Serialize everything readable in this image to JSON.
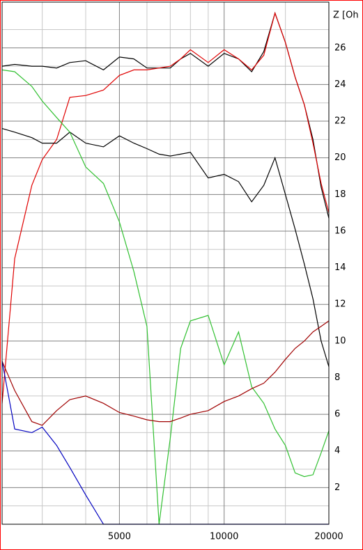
{
  "chart_data": {
    "type": "line",
    "y_axis_label": "Z [Oh",
    "log_x": true,
    "grid": true,
    "xlim": [
      2300,
      20000
    ],
    "xticks": [
      5000,
      10000,
      20000
    ],
    "x_minor_grid": [
      3000,
      4000,
      6000,
      7000,
      8000,
      9000,
      15000
    ],
    "ylim": [
      0,
      28.5
    ],
    "yticks": [
      2,
      4,
      6,
      8,
      10,
      12,
      14,
      16,
      18,
      20,
      22,
      24,
      26
    ],
    "y_minor_grid": [
      1,
      3,
      5,
      7,
      9,
      11,
      13,
      15,
      17,
      19,
      21,
      23,
      25,
      27
    ],
    "x": [
      2300,
      2500,
      2800,
      3000,
      3300,
      3600,
      4000,
      4500,
      5000,
      5500,
      6000,
      6500,
      7000,
      7500,
      8000,
      9000,
      10000,
      11000,
      12000,
      13000,
      14000,
      15000,
      16000,
      17000,
      18000,
      19000,
      20000
    ],
    "series": [
      {
        "color": "#000000",
        "values": [
          25.0,
          25.1,
          25.0,
          25.0,
          24.9,
          25.2,
          25.3,
          24.8,
          25.5,
          25.4,
          24.9,
          24.9,
          24.9,
          25.4,
          25.7,
          25.0,
          25.7,
          25.4,
          24.7,
          25.8,
          27.9,
          26.3,
          24.4,
          22.9,
          21.0,
          18.4,
          16.7
        ]
      },
      {
        "color": "#e00000",
        "values": [
          6.6,
          14.5,
          18.5,
          19.9,
          21.0,
          23.3,
          23.4,
          23.7,
          24.5,
          24.8,
          24.8,
          24.9,
          25.0,
          25.4,
          25.9,
          25.2,
          25.9,
          25.4,
          24.8,
          25.6,
          27.9,
          26.3,
          24.4,
          22.9,
          20.8,
          18.6,
          17.0
        ]
      },
      {
        "color": "#000000",
        "values": [
          21.6,
          21.4,
          21.1,
          20.8,
          20.8,
          21.4,
          20.8,
          20.6,
          21.2,
          20.8,
          20.5,
          20.2,
          20.1,
          20.2,
          20.3,
          18.9,
          19.1,
          18.7,
          17.6,
          18.5,
          20.0,
          18.0,
          16.1,
          14.2,
          12.3,
          10.0,
          8.6
        ]
      },
      {
        "color": "#30c030",
        "values": [
          24.8,
          24.7,
          23.9,
          23.1,
          22.2,
          21.4,
          19.5,
          18.6,
          16.5,
          13.8,
          10.8,
          0,
          4.7,
          9.6,
          11.1,
          11.4,
          8.7,
          10.5,
          7.5,
          6.6,
          5.2,
          4.3,
          2.8,
          2.6,
          2.7,
          3.9,
          5.1
        ]
      },
      {
        "color": "#a00000",
        "values": [
          8.9,
          7.3,
          5.6,
          5.4,
          6.2,
          6.8,
          7.0,
          6.6,
          6.1,
          5.9,
          5.7,
          5.6,
          5.6,
          5.8,
          6.0,
          6.2,
          6.7,
          7.0,
          7.4,
          7.7,
          8.3,
          9.0,
          9.6,
          10.0,
          10.5,
          10.8,
          11.1
        ]
      },
      {
        "color": "#0000c0",
        "values": [
          8.9,
          5.2,
          5.0,
          5.3,
          4.3,
          3.1,
          1.6,
          0,
          0,
          0,
          0,
          0,
          0,
          0,
          0,
          0,
          0,
          0,
          0,
          0,
          0,
          0,
          0,
          0,
          0,
          0,
          0
        ]
      }
    ]
  }
}
